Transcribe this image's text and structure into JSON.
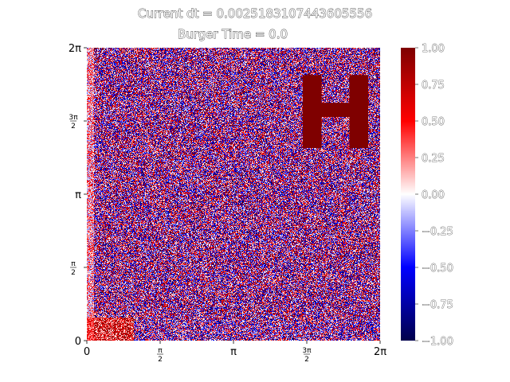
{
  "chart_data": {
    "type": "heatmap",
    "title": "Current dt = 0.0025183107443605556",
    "subtitle": "Burger   Time = 0.0",
    "xlabel": "",
    "ylabel": "",
    "xlim": [
      0,
      6.283185307
    ],
    "ylim": [
      0,
      6.283185307
    ],
    "x_ticks": [
      {
        "value": 0,
        "label": "0"
      },
      {
        "value": 1.5707963,
        "label": "π/2",
        "num": "π",
        "den": "2"
      },
      {
        "value": 3.1415927,
        "label": "π"
      },
      {
        "value": 4.712389,
        "label": "3π/2",
        "num": "3π",
        "den": "2"
      },
      {
        "value": 6.2831853,
        "label": "2π"
      }
    ],
    "y_ticks": [
      {
        "value": 0,
        "label": "0"
      },
      {
        "value": 1.5707963,
        "label": "π/2",
        "num": "π",
        "den": "2"
      },
      {
        "value": 3.1415927,
        "label": "π"
      },
      {
        "value": 4.712389,
        "label": "3π/2",
        "num": "3π",
        "den": "2"
      },
      {
        "value": 6.2831853,
        "label": "2π"
      }
    ],
    "colormap": "seismic",
    "colorbar": {
      "range": [
        -1.0,
        1.0
      ],
      "tick_values": [
        1.0,
        0.75,
        0.5,
        0.25,
        0.0,
        -0.25,
        -0.5,
        -0.75,
        -1.0
      ],
      "tick_labels": [
        "1.00",
        "0.75",
        "0.50",
        "0.25",
        "0.00",
        "−0.25",
        "−0.50",
        "−0.75",
        "−1.00"
      ]
    },
    "field": "random noise in [-1, 1]; denser positive (red) region near x in [0, 1], y in [0, 0.5]",
    "overlay_glyph": "H",
    "overlay_glyph_color": "#7f0000",
    "grid": false,
    "legend": "none"
  }
}
